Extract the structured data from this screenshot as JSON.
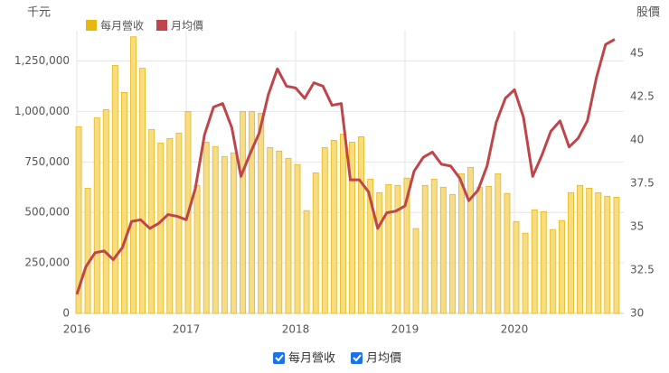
{
  "chart_data": {
    "type": "bar-line",
    "y_label": "千元",
    "y2_label": "股價",
    "x": [
      2016,
      2016.083,
      2016.167,
      2016.25,
      2016.333,
      2016.417,
      2016.5,
      2016.583,
      2016.667,
      2016.75,
      2016.833,
      2016.917,
      2017,
      2017.083,
      2017.167,
      2017.25,
      2017.333,
      2017.417,
      2017.5,
      2017.583,
      2017.667,
      2017.75,
      2017.833,
      2017.917,
      2018,
      2018.083,
      2018.167,
      2018.25,
      2018.333,
      2018.417,
      2018.5,
      2018.583,
      2018.667,
      2018.75,
      2018.833,
      2018.917,
      2019,
      2019.083,
      2019.167,
      2019.25,
      2019.333,
      2019.417,
      2019.5,
      2019.583,
      2019.667,
      2019.75,
      2019.833,
      2019.917,
      2020,
      2020.083,
      2020.167,
      2020.25,
      2020.333,
      2020.417,
      2020.5,
      2020.583,
      2020.667,
      2020.75,
      2020.833,
      2020.917
    ],
    "xlim": [
      2016,
      2021
    ],
    "xticks": [
      2016,
      2017,
      2018,
      2019,
      2020
    ],
    "ylim": [
      0,
      1400000
    ],
    "yticks": [
      0,
      {
        "value": 250000,
        "label": "250,000"
      },
      {
        "value": 500000,
        "label": "500,000"
      },
      {
        "value": 750000,
        "label": "750,000"
      },
      {
        "value": 1000000,
        "label": "1,000,000"
      },
      {
        "value": 1250000,
        "label": "1,250,000"
      }
    ],
    "y2lim": [
      30,
      46.3
    ],
    "y2ticks": [
      30,
      32.5,
      35,
      37.5,
      40,
      42.5,
      45
    ],
    "grid": true,
    "series": [
      {
        "name": "每月營收",
        "type": "bar",
        "color": "#e8b810",
        "fill": "#f6dc84",
        "values": [
          924000,
          620000,
          968000,
          1009000,
          1228000,
          1094000,
          1370000,
          1214000,
          911000,
          844000,
          866000,
          893000,
          1000000,
          634000,
          848000,
          826000,
          777000,
          795000,
          1000000,
          1000000,
          991000,
          821000,
          804000,
          768000,
          737000,
          509000,
          696000,
          821000,
          857000,
          888000,
          848000,
          875000,
          665000,
          598000,
          638000,
          634000,
          670000,
          420000,
          634000,
          665000,
          625000,
          589000,
          692000,
          723000,
          625000,
          629000,
          692000,
          594000,
          455000,
          397000,
          513000,
          504000,
          415000,
          460000,
          598000,
          634000,
          620000,
          598000,
          580000,
          575000
        ]
      },
      {
        "name": "月均價",
        "type": "line",
        "axis": "y2",
        "color": "#c0454a",
        "values": [
          31.1,
          32.7,
          33.5,
          33.6,
          33.1,
          33.8,
          35.3,
          35.4,
          34.9,
          35.2,
          35.7,
          35.6,
          35.4,
          37.2,
          40.3,
          41.9,
          42.1,
          40.7,
          37.9,
          39.2,
          40.4,
          42.6,
          44.1,
          43.1,
          43.0,
          42.4,
          43.3,
          43.1,
          42.0,
          42.1,
          37.7,
          37.7,
          37.0,
          34.9,
          35.8,
          35.9,
          36.2,
          38.2,
          39.0,
          39.3,
          38.6,
          38.5,
          37.8,
          36.5,
          37.1,
          38.5,
          41.0,
          42.4,
          42.9,
          41.3,
          37.9,
          39.1,
          40.5,
          41.1,
          39.6,
          40.1,
          41.1,
          43.6,
          45.5,
          45.8
        ]
      }
    ]
  }
}
